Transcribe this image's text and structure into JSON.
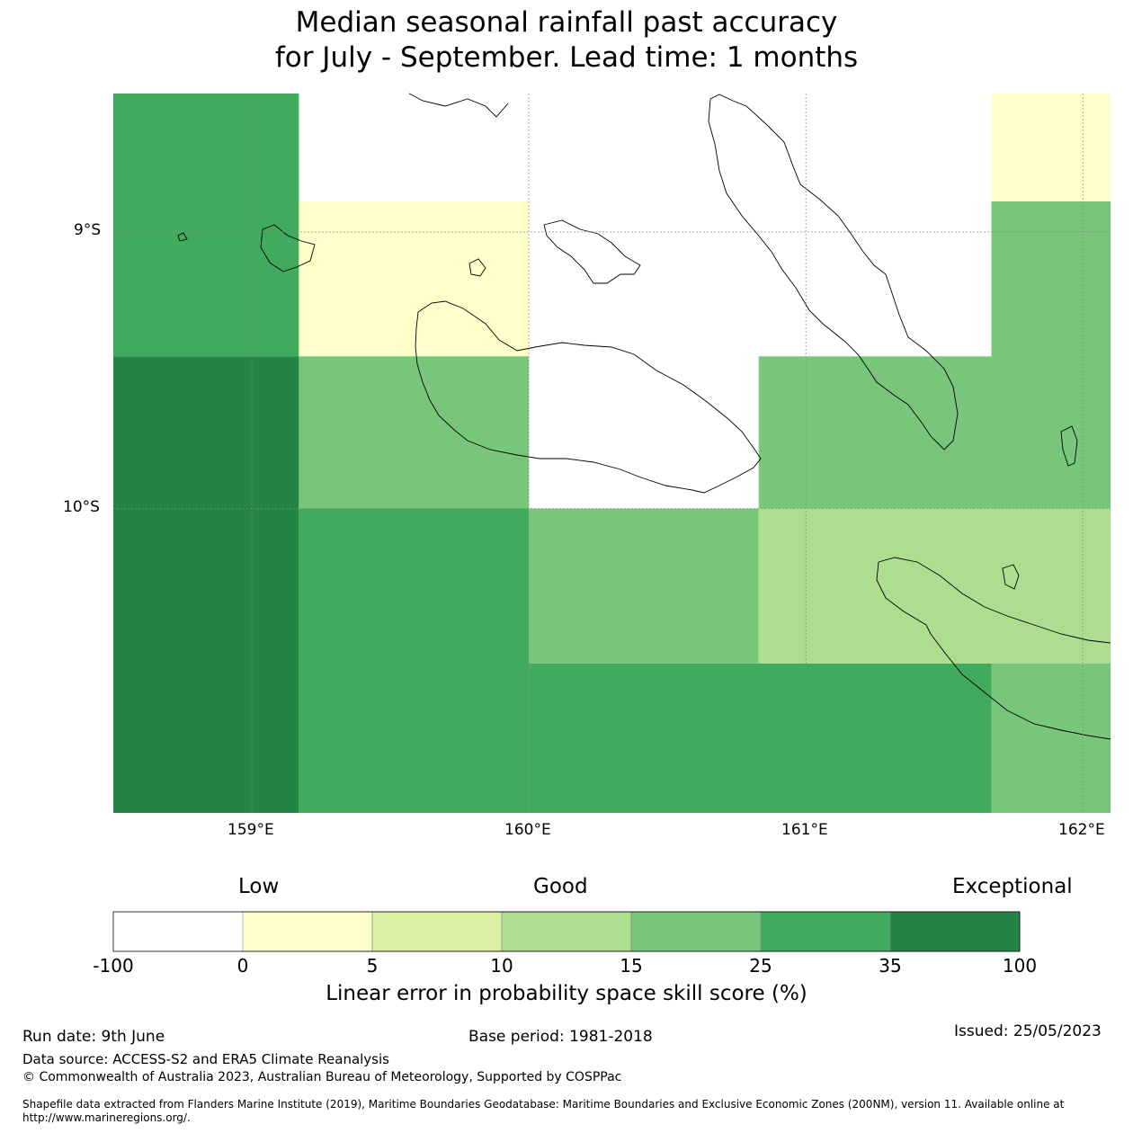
{
  "title": {
    "line1": "Median seasonal rainfall past accuracy",
    "line2": "for July - September. Lead time: 1 months"
  },
  "axes": {
    "lat_labels": [
      "9°S",
      "10°S"
    ],
    "lon_labels": [
      "159°E",
      "160°E",
      "161°E",
      "162°E"
    ]
  },
  "map_data": {
    "lon_range": [
      158.5,
      162.1
    ],
    "lat_range": [
      -11.1,
      -8.5
    ],
    "cells": [
      {
        "lon": [
          158.5,
          159.17
        ],
        "lat": [
          -8.5,
          -9.45
        ],
        "value_class": 5
      },
      {
        "lon": [
          158.5,
          159.17
        ],
        "lat": [
          -9.45,
          -11.1
        ],
        "value_class": 6
      },
      {
        "lon": [
          159.17,
          160.0
        ],
        "lat": [
          -8.89,
          -9.45
        ],
        "value_class": 1
      },
      {
        "lon": [
          159.17,
          160.0
        ],
        "lat": [
          -9.45,
          -10.0
        ],
        "value_class": 4
      },
      {
        "lon": [
          159.17,
          160.0
        ],
        "lat": [
          -10.0,
          -11.1
        ],
        "value_class": 5
      },
      {
        "lon": [
          160.0,
          160.83
        ],
        "lat": [
          -10.0,
          -10.56
        ],
        "value_class": 4
      },
      {
        "lon": [
          160.0,
          161.67
        ],
        "lat": [
          -10.56,
          -11.1
        ],
        "value_class": 5
      },
      {
        "lon": [
          160.83,
          161.67
        ],
        "lat": [
          -9.45,
          -10.0
        ],
        "value_class": 4
      },
      {
        "lon": [
          160.83,
          162.1
        ],
        "lat": [
          -10.0,
          -10.56
        ],
        "value_class": 3
      },
      {
        "lon": [
          161.67,
          162.1
        ],
        "lat": [
          -8.5,
          -8.89
        ],
        "value_class": 1
      },
      {
        "lon": [
          161.67,
          162.1
        ],
        "lat": [
          -8.89,
          -10.0
        ],
        "value_class": 4
      },
      {
        "lon": [
          161.67,
          162.1
        ],
        "lat": [
          -10.56,
          -11.1
        ],
        "value_class": 4
      }
    ]
  },
  "colorbar": {
    "words": [
      "Low",
      "Good",
      "Exceptional"
    ],
    "ticks": [
      "-100",
      "0",
      "5",
      "10",
      "15",
      "25",
      "35",
      "100"
    ],
    "colors": [
      "#ffffff",
      "#ffffcc",
      "#d9f0a3",
      "#addd8e",
      "#78c679",
      "#41ab5d",
      "#238443"
    ],
    "label": "Linear error in probability space skill score (%)"
  },
  "footer": {
    "run_date": "Run date: 9th June",
    "base_period": "Base period: 1981-2018",
    "issued": "Issued: 25/05/2023",
    "data_source": "Data source: ACCESS-S2 and ERA5 Climate Reanalysis",
    "copyright": "© Commonwealth of Australia 2023, Australian Bureau of Meteorology, Supported by COSPPac",
    "shapefile_line1": "Shapefile data extracted from Flanders Marine Institute (2019), Maritime Boundaries Geodatabase: Maritime Boundaries and Exclusive Economic Zones (200NM), version 11. Available online at",
    "shapefile_line2": "http://www.marineregions.org/."
  }
}
